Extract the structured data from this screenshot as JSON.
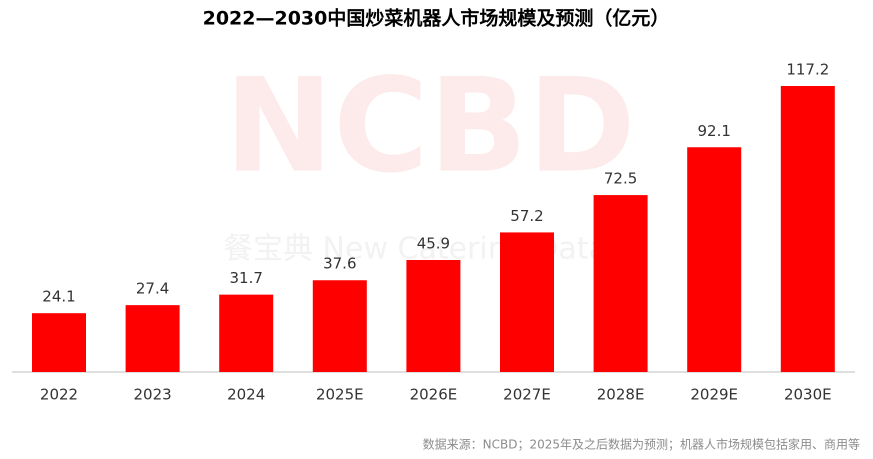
{
  "chart_data": {
    "type": "bar",
    "title": "2022—2030中国炒菜机器人市场规模及预测（亿元）",
    "categories": [
      "2022",
      "2023",
      "2024",
      "2025E",
      "2026E",
      "2027E",
      "2028E",
      "2029E",
      "2030E"
    ],
    "values": [
      24.1,
      27.4,
      31.7,
      37.6,
      45.9,
      57.2,
      72.5,
      92.1,
      117.2
    ],
    "color": "#ff0000",
    "watermark": "NCBD",
    "watermark_subtitle": "餐宝典 New Catering Data",
    "source": "数据来源：NCBD；2025年及之后数据为预测；机器人市场规模包括家用、商用等"
  }
}
